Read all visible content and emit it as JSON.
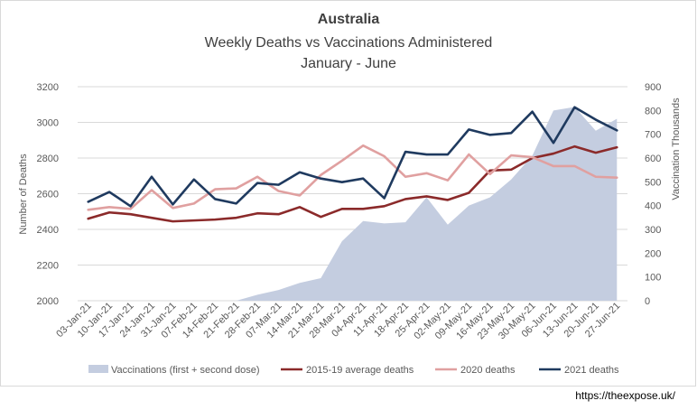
{
  "source": "https://theexpose.uk/",
  "chart_data": {
    "type": "line",
    "title": "Australia",
    "subtitle_lines": [
      "Weekly Deaths vs Vaccinations Administered",
      "January - June"
    ],
    "ylabel_left": "Number  of Deaths",
    "ylabel_right": "Vaccination Thousands",
    "ylim_left": [
      2000,
      3200
    ],
    "yticks_left": [
      "2000",
      "2200",
      "2400",
      "2600",
      "2800",
      "3000",
      "3200"
    ],
    "ylim_right": [
      0,
      900
    ],
    "yticks_right": [
      "0",
      "100",
      "200",
      "300",
      "400",
      "500",
      "600",
      "700",
      "800",
      "900"
    ],
    "grid": "horizontal",
    "legend_position": "bottom",
    "categories": [
      "03-Jan-21",
      "10-Jan-21",
      "17-Jan-21",
      "24-Jan-21",
      "31-Jan-21",
      "07-Feb-21",
      "14-Feb-21",
      "21-Feb-21",
      "28-Feb-21",
      "07-Mar-21",
      "14-Mar-21",
      "21-Mar-21",
      "28-Mar-21",
      "04-Apr-21",
      "11-Apr-21",
      "18-Apr-21",
      "25-Apr-21",
      "02-May-21",
      "09-May-21",
      "16-May-21",
      "23-May-21",
      "30-May-21",
      "06-Jun-21",
      "13-Jun-21",
      "20-Jun-21",
      "27-Jun-21"
    ],
    "series": [
      {
        "name": "Vaccinations (first + second dose)",
        "kind": "area",
        "axis": "right",
        "color": "#c4cde0",
        "values": [
          0,
          0,
          0,
          0,
          0,
          0,
          0,
          0,
          25,
          45,
          75,
          95,
          250,
          335,
          325,
          330,
          435,
          320,
          400,
          435,
          510,
          610,
          800,
          815,
          715,
          765
        ]
      },
      {
        "name": "2015-19 average deaths",
        "kind": "line",
        "axis": "left",
        "color": "#8b2a2a",
        "values": [
          2460,
          2495,
          2485,
          2465,
          2445,
          2450,
          2455,
          2465,
          2490,
          2485,
          2525,
          2470,
          2515,
          2515,
          2530,
          2570,
          2585,
          2565,
          2605,
          2730,
          2735,
          2800,
          2825,
          2865,
          2830,
          2860
        ]
      },
      {
        "name": "2020 deaths",
        "kind": "line",
        "axis": "left",
        "color": "#e0a0a0",
        "values": [
          2510,
          2525,
          2515,
          2620,
          2520,
          2545,
          2625,
          2630,
          2695,
          2615,
          2590,
          2705,
          2785,
          2870,
          2810,
          2695,
          2715,
          2675,
          2820,
          2710,
          2815,
          2805,
          2755,
          2755,
          2695,
          2690
        ]
      },
      {
        "name": "2021 deaths",
        "kind": "line",
        "axis": "left",
        "color": "#1f3a5f",
        "values": [
          2555,
          2610,
          2530,
          2695,
          2540,
          2680,
          2570,
          2545,
          2660,
          2650,
          2720,
          2685,
          2665,
          2685,
          2575,
          2835,
          2820,
          2820,
          2960,
          2930,
          2940,
          3060,
          2885,
          3085,
          3015,
          2955
        ]
      }
    ]
  }
}
